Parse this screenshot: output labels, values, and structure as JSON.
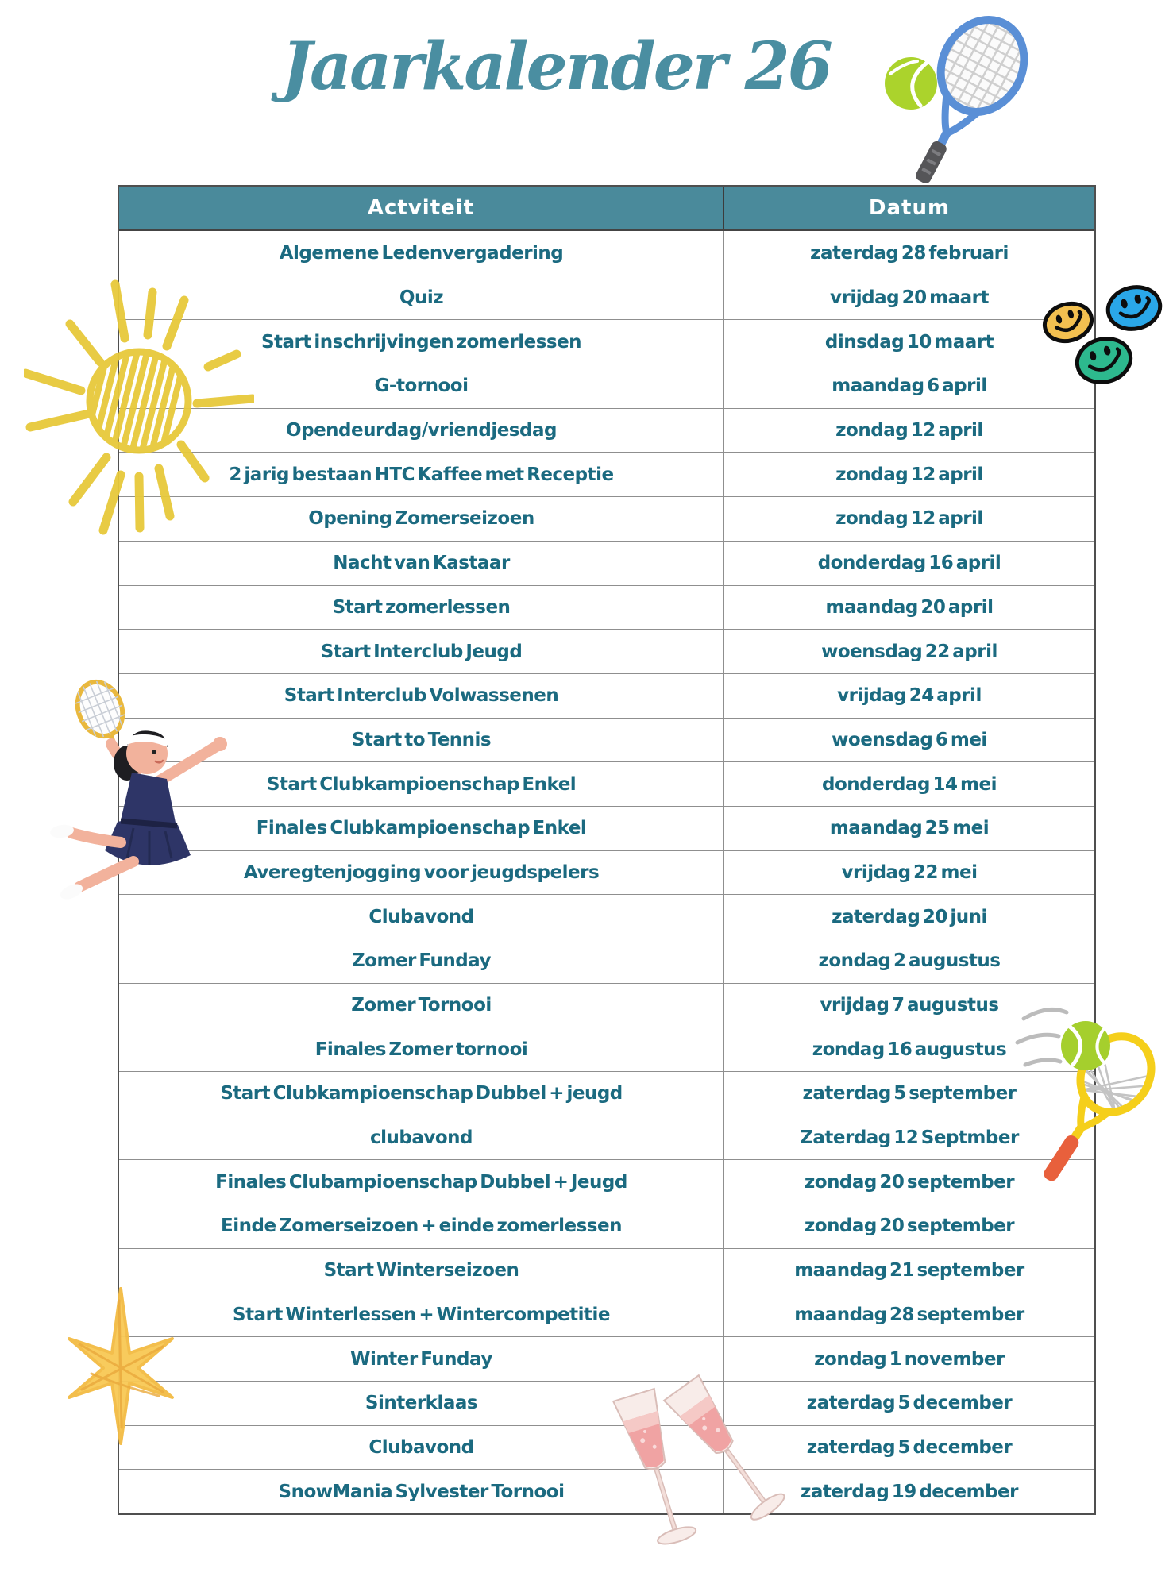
{
  "page": {
    "title": "Jaarkalender 26"
  },
  "colors": {
    "title_teal": "#4a8ea1",
    "header_bg": "#4a8a9b",
    "header_text": "#ffffff",
    "body_text": "#1b6a80",
    "grid_line": "#8f8f8f",
    "outer_border": "#4f4f4f",
    "sun_yellow": "#e7c93a",
    "star_yellow": "#f8c957",
    "ball_green": "#a5cf2d",
    "racket_blue": "#5a8fd6",
    "racket_yellow": "#f5cf1b",
    "racket_handle_orange": "#e8603c",
    "smiley_yellow": "#f3c050",
    "smiley_blue": "#2aa7e8",
    "smiley_green": "#2db98e",
    "champagne_pink": "#f0a3a3",
    "dress_navy": "#2e3567"
  },
  "icons": [
    "tennis-racket-ball-icon",
    "sun-doodle-icon",
    "smiley-yellow-icon",
    "smiley-blue-icon",
    "smiley-green-icon",
    "tennis-player-girl-icon",
    "yellow-racket-ball-icon",
    "star-doodle-icon",
    "champagne-glasses-icon"
  ],
  "table": {
    "headers": [
      "Actviteit",
      "Datum"
    ],
    "rows": [
      {
        "activity": "Algemene Ledenvergadering",
        "date": "zaterdag 28 februari"
      },
      {
        "activity": "Quiz",
        "date": "vrijdag 20 maart"
      },
      {
        "activity": "Start inschrijvingen zomerlessen",
        "date": "dinsdag 10 maart"
      },
      {
        "activity": "G-tornooi",
        "date": "maandag 6 april"
      },
      {
        "activity": "Opendeurdag/vriendjesdag",
        "date": "zondag 12 april"
      },
      {
        "activity": "2 jarig bestaan HTC Kaffee met Receptie",
        "date": "zondag 12 april"
      },
      {
        "activity": "Opening Zomerseizoen",
        "date": "zondag 12 april"
      },
      {
        "activity": "Nacht van Kastaar",
        "date": "donderdag 16 april"
      },
      {
        "activity": "Start zomerlessen",
        "date": "maandag 20 april"
      },
      {
        "activity": "Start Interclub Jeugd",
        "date": "woensdag 22 april"
      },
      {
        "activity": "Start Interclub Volwassenen",
        "date": "vrijdag 24 april"
      },
      {
        "activity": "Start to Tennis",
        "date": "woensdag 6 mei"
      },
      {
        "activity": "Start Clubkampioenschap Enkel",
        "date": "donderdag 14 mei"
      },
      {
        "activity": "Finales Clubkampioenschap Enkel",
        "date": "maandag 25 mei"
      },
      {
        "activity": "Averegtenjogging voor jeugdspelers",
        "date": "vrijdag 22 mei"
      },
      {
        "activity": "Clubavond",
        "date": "zaterdag 20 juni"
      },
      {
        "activity": "Zomer Funday",
        "date": "zondag 2 augustus"
      },
      {
        "activity": "Zomer Tornooi",
        "date": "vrijdag 7 augustus"
      },
      {
        "activity": "Finales Zomer tornooi",
        "date": "zondag 16 augustus"
      },
      {
        "activity": "Start Clubkampioenschap Dubbel + jeugd",
        "date": "zaterdag 5 september"
      },
      {
        "activity": "clubavond",
        "date": "Zaterdag 12 Septmber"
      },
      {
        "activity": "Finales Clubampioenschap Dubbel + Jeugd",
        "date": "zondag 20 september"
      },
      {
        "activity": "Einde Zomerseizoen + einde zomerlessen",
        "date": "zondag 20 september"
      },
      {
        "activity": "Start Winterseizoen",
        "date": "maandag 21 september"
      },
      {
        "activity": "Start Winterlessen + Wintercompetitie",
        "date": "maandag 28 september"
      },
      {
        "activity": "Winter Funday",
        "date": "zondag 1 november"
      },
      {
        "activity": "Sinterklaas",
        "date": "zaterdag 5 december"
      },
      {
        "activity": "Clubavond",
        "date": "zaterdag 5 december"
      },
      {
        "activity": "SnowMania Sylvester Tornooi",
        "date": "zaterdag 19 december"
      }
    ]
  }
}
